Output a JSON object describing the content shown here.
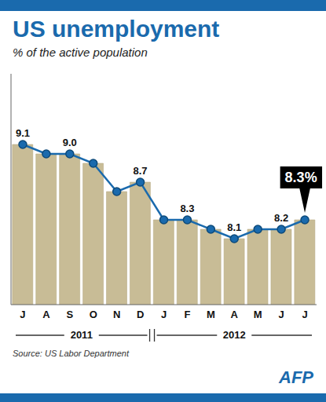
{
  "chart_data": {
    "type": "bar",
    "title": "US unemployment",
    "subtitle": "% of the active population",
    "categories": [
      "J",
      "A",
      "S",
      "O",
      "N",
      "D",
      "J",
      "F",
      "M",
      "A",
      "M",
      "J",
      "J"
    ],
    "series": [
      {
        "type": "bar",
        "color": "#c8bc96",
        "values": [
          9.1,
          9.0,
          9.0,
          8.9,
          8.6,
          8.7,
          8.3,
          8.3,
          8.2,
          8.1,
          8.2,
          8.2,
          8.3
        ]
      },
      {
        "type": "line",
        "color": "#1a6aad",
        "marker": "o",
        "values": [
          9.1,
          9.0,
          9.0,
          8.9,
          8.6,
          8.7,
          8.3,
          8.3,
          8.2,
          8.1,
          8.2,
          8.2,
          8.3
        ],
        "value_labels": [
          "9.1",
          null,
          "9.0",
          null,
          null,
          "8.7",
          null,
          "8.3",
          null,
          "8.1",
          null,
          "8.2",
          null
        ]
      }
    ],
    "ylim": [
      7.4,
      9.85
    ],
    "grid": false,
    "tick_labels": "x",
    "annotations": [
      {
        "text": "8.3%",
        "index": 12
      }
    ],
    "groups": [
      {
        "label": "2011",
        "from": 0,
        "to": 5
      },
      {
        "label": "2012",
        "from": 6,
        "to": 12
      }
    ],
    "source": "Source: US Labor Department",
    "credit": "AFP"
  }
}
